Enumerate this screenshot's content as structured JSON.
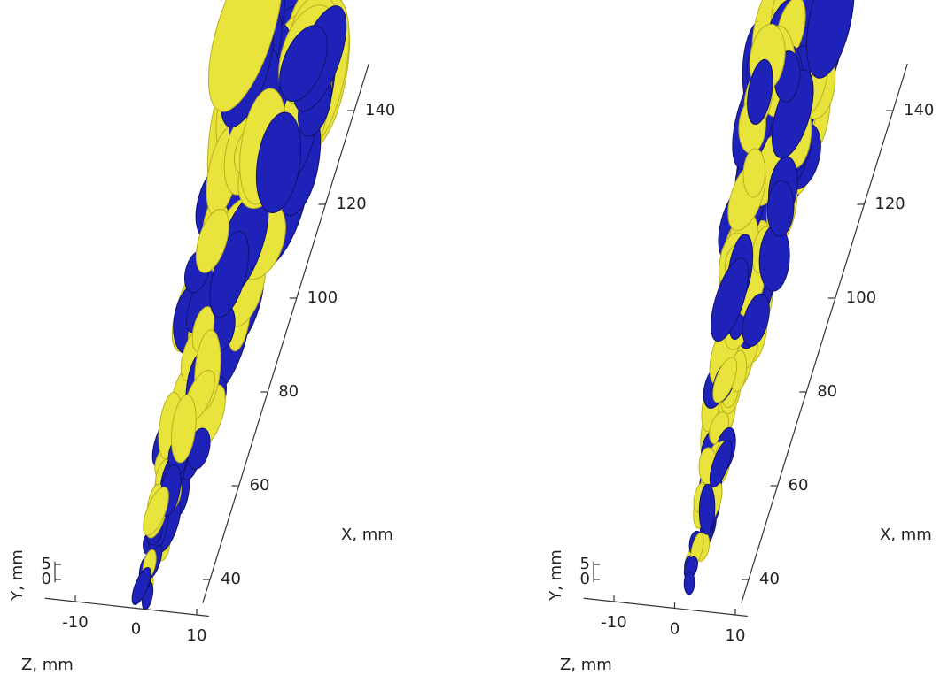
{
  "chart_data": [
    {
      "type": "isosurface3d",
      "x_label": "X, mm",
      "y_label": "Y, mm",
      "z_label": "Z, mm",
      "xlim": [
        35,
        150
      ],
      "xticks": [
        40,
        60,
        80,
        100,
        120,
        140
      ],
      "ylim": [
        -1,
        6
      ],
      "yticks": [
        0,
        5
      ],
      "zlim": [
        -15,
        12
      ],
      "zticks": [
        -10,
        0,
        10
      ],
      "colors": [
        "#e8e43c",
        "#1e22b8"
      ]
    },
    {
      "type": "isosurface3d",
      "x_label": "X, mm",
      "y_label": "Y, mm",
      "z_label": "Z, mm",
      "xlim": [
        35,
        150
      ],
      "xticks": [
        40,
        60,
        80,
        100,
        120,
        140
      ],
      "ylim": [
        -1,
        6
      ],
      "yticks": [
        0,
        5
      ],
      "zlim": [
        -15,
        12
      ],
      "zticks": [
        -10,
        0,
        10
      ],
      "colors": [
        "#e8e43c",
        "#1e22b8"
      ]
    }
  ]
}
